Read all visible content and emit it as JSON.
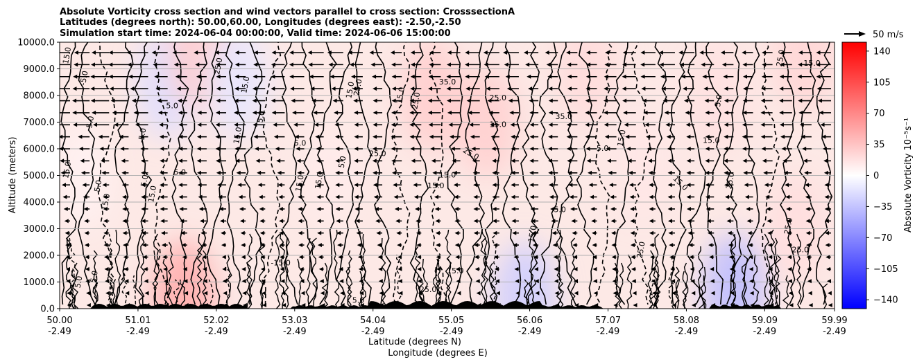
{
  "chart_data": {
    "type": "heatmap",
    "title_lines": [
      "Absolute Vorticity cross section and wind vectors parallel to cross section: CrosssectionA",
      "Latitudes (degrees north): 50.00,60.00, Longitudes (degrees east): -2.50,-2.50",
      "Simulation start time: 2024-06-04 00:00:00, Valid time: 2024-06-06 15:00:00"
    ],
    "xlabel_lines": [
      "Latitude (degrees N)",
      "Longitude (degrees E)"
    ],
    "ylabel": "Altitude (meters)",
    "x_ticks": [
      {
        "lat": 50.0,
        "label": "50.00",
        "lon_label": "-2.49"
      },
      {
        "lat": 51.01,
        "label": "51.01",
        "lon_label": "-2.49"
      },
      {
        "lat": 52.02,
        "label": "52.02",
        "lon_label": "-2.49"
      },
      {
        "lat": 53.03,
        "label": "53.03",
        "lon_label": "-2.49"
      },
      {
        "lat": 54.04,
        "label": "54.04",
        "lon_label": "-2.49"
      },
      {
        "lat": 55.05,
        "label": "55.05",
        "lon_label": "-2.49"
      },
      {
        "lat": 56.06,
        "label": "56.06",
        "lon_label": "-2.49"
      },
      {
        "lat": 57.07,
        "label": "57.07",
        "lon_label": "-2.49"
      },
      {
        "lat": 58.08,
        "label": "58.08",
        "lon_label": "-2.49"
      },
      {
        "lat": 59.09,
        "label": "59.09",
        "lon_label": "-2.49"
      },
      {
        "lat": 59.99,
        "label": "59.99",
        "lon_label": "-2.49"
      }
    ],
    "y_ticks": [
      {
        "value": 0,
        "label": "0.0"
      },
      {
        "value": 1000,
        "label": "1000.0"
      },
      {
        "value": 2000,
        "label": "2000.0"
      },
      {
        "value": 3000,
        "label": "3000.0"
      },
      {
        "value": 4000,
        "label": "4000.0"
      },
      {
        "value": 5000,
        "label": "5000.0"
      },
      {
        "value": 6000,
        "label": "6000.0"
      },
      {
        "value": 7000,
        "label": "7000.0"
      },
      {
        "value": 8000,
        "label": "8000.0"
      },
      {
        "value": 9000,
        "label": "9000.0"
      },
      {
        "value": 10000,
        "label": "10000.0"
      }
    ],
    "xlim": [
      50.0,
      59.99
    ],
    "ylim": [
      0,
      10000
    ],
    "grid": "horizontal",
    "colorbar": {
      "label": "Absolute Vorticity 10⁻⁵s⁻¹",
      "vmin": -150,
      "vmax": 150,
      "ticks": [
        {
          "value": 140,
          "label": "140"
        },
        {
          "value": 105,
          "label": "105"
        },
        {
          "value": 70,
          "label": "70"
        },
        {
          "value": 35,
          "label": "35"
        },
        {
          "value": 0,
          "label": "0"
        },
        {
          "value": -35,
          "label": "−35"
        },
        {
          "value": -70,
          "label": "−70"
        },
        {
          "value": -105,
          "label": "−105"
        },
        {
          "value": -140,
          "label": "−140"
        }
      ],
      "colors": [
        "#0000ff",
        "#ffffff",
        "#ff0000"
      ]
    },
    "quiver_key": {
      "label": "50 m/s",
      "speed": 50
    },
    "field_samples": [
      {
        "lat": 50.3,
        "alt": 5000,
        "value": 8
      },
      {
        "lat": 51.4,
        "alt": 8500,
        "value": -20
      },
      {
        "lat": 51.8,
        "alt": 9500,
        "value": 30
      },
      {
        "lat": 52.3,
        "alt": 8500,
        "value": -15
      },
      {
        "lat": 53.5,
        "alt": 5000,
        "value": 12
      },
      {
        "lat": 54.8,
        "alt": 8000,
        "value": 30
      },
      {
        "lat": 55.5,
        "alt": 7000,
        "value": 28
      },
      {
        "lat": 56.8,
        "alt": 9000,
        "value": 22
      },
      {
        "lat": 57.5,
        "alt": 5500,
        "value": 15
      },
      {
        "lat": 58.5,
        "alt": 8000,
        "value": 18
      },
      {
        "lat": 59.6,
        "alt": 9500,
        "value": 25
      },
      {
        "lat": 59.5,
        "alt": 3000,
        "value": 20
      },
      {
        "lat": 51.6,
        "alt": 500,
        "value": 50
      },
      {
        "lat": 58.7,
        "alt": 700,
        "value": -40
      },
      {
        "lat": 56.0,
        "alt": 400,
        "value": -30
      }
    ],
    "contour_labels": [
      {
        "lat": 50.1,
        "alt": 9500,
        "text": "15.0",
        "angle": -80
      },
      {
        "lat": 50.32,
        "alt": 8650,
        "text": "-5.0",
        "angle": -80
      },
      {
        "lat": 50.4,
        "alt": 7000,
        "text": "5.0",
        "angle": -80
      },
      {
        "lat": 50.1,
        "alt": 5200,
        "text": "15.0",
        "angle": -80
      },
      {
        "lat": 50.5,
        "alt": 4600,
        "text": "5.0",
        "angle": -80
      },
      {
        "lat": 50.6,
        "alt": 4000,
        "text": "15.0",
        "angle": -80
      },
      {
        "lat": 50.45,
        "alt": 1200,
        "text": "5.0",
        "angle": -80
      },
      {
        "lat": 51.07,
        "alt": 6500,
        "text": "-5.0",
        "angle": -80
      },
      {
        "lat": 51.1,
        "alt": 4800,
        "text": "5.0",
        "angle": -80
      },
      {
        "lat": 51.2,
        "alt": 4300,
        "text": "15.0",
        "angle": -80
      },
      {
        "lat": 51.45,
        "alt": 7600,
        "text": "5.0",
        "angle": 0
      },
      {
        "lat": 51.55,
        "alt": 5100,
        "text": "5.0",
        "angle": 0
      },
      {
        "lat": 52.05,
        "alt": 9100,
        "text": "25.0",
        "angle": -80
      },
      {
        "lat": 52.4,
        "alt": 8400,
        "text": "15.0",
        "angle": -80
      },
      {
        "lat": 52.3,
        "alt": 6500,
        "text": "15.0",
        "angle": -80
      },
      {
        "lat": 52.6,
        "alt": 7200,
        "text": "5.0",
        "angle": -80
      },
      {
        "lat": 53.1,
        "alt": 6200,
        "text": "5.0",
        "angle": 0
      },
      {
        "lat": 53.1,
        "alt": 4700,
        "text": "15.0",
        "angle": -80
      },
      {
        "lat": 53.35,
        "alt": 4800,
        "text": "15.0",
        "angle": -80
      },
      {
        "lat": 53.75,
        "alt": 8200,
        "text": "15.0",
        "angle": -80
      },
      {
        "lat": 53.65,
        "alt": 5500,
        "text": "5.0",
        "angle": -80
      },
      {
        "lat": 53.85,
        "alt": 8300,
        "text": "25.0",
        "angle": -80
      },
      {
        "lat": 54.4,
        "alt": 8000,
        "text": "15.0",
        "angle": -80
      },
      {
        "lat": 54.6,
        "alt": 7800,
        "text": "25.0",
        "angle": -80
      },
      {
        "lat": 54.1,
        "alt": 5800,
        "text": "25.0",
        "angle": 0
      },
      {
        "lat": 55.0,
        "alt": 8500,
        "text": "35.0",
        "angle": 0
      },
      {
        "lat": 55.65,
        "alt": 7900,
        "text": "25.0",
        "angle": 0
      },
      {
        "lat": 55.0,
        "alt": 5000,
        "text": "15.0",
        "angle": 0
      },
      {
        "lat": 54.85,
        "alt": 4600,
        "text": "15.0",
        "angle": 0
      },
      {
        "lat": 55.3,
        "alt": 5800,
        "text": "25.0",
        "angle": 30
      },
      {
        "lat": 55.65,
        "alt": 6900,
        "text": "15.0",
        "angle": 0
      },
      {
        "lat": 56.5,
        "alt": 7200,
        "text": "35.0",
        "angle": 0
      },
      {
        "lat": 57.0,
        "alt": 6000,
        "text": "5.0",
        "angle": 0
      },
      {
        "lat": 56.45,
        "alt": 3700,
        "text": "5.0",
        "angle": 0
      },
      {
        "lat": 56.1,
        "alt": 2800,
        "text": "15.0",
        "angle": -80
      },
      {
        "lat": 57.25,
        "alt": 6400,
        "text": "15.0",
        "angle": -80
      },
      {
        "lat": 58.4,
        "alt": 6300,
        "text": "15.0",
        "angle": 0
      },
      {
        "lat": 58.0,
        "alt": 4700,
        "text": "15.0",
        "angle": 45
      },
      {
        "lat": 58.65,
        "alt": 4800,
        "text": "25.0",
        "angle": -80
      },
      {
        "lat": 59.3,
        "alt": 9400,
        "text": "25.0",
        "angle": -80
      },
      {
        "lat": 59.7,
        "alt": 9200,
        "text": "15.0",
        "angle": 0
      },
      {
        "lat": 59.4,
        "alt": 3100,
        "text": "25.0",
        "angle": -80
      },
      {
        "lat": 59.55,
        "alt": 2200,
        "text": "25.0",
        "angle": 0
      },
      {
        "lat": 58.5,
        "alt": 7800,
        "text": "5.0",
        "angle": -80
      },
      {
        "lat": 57.5,
        "alt": 2200,
        "text": "25.0",
        "angle": -80
      },
      {
        "lat": 55.1,
        "alt": 1400,
        "text": "15.0",
        "angle": 0
      },
      {
        "lat": 53.85,
        "alt": 300,
        "text": "5.0",
        "angle": 0
      },
      {
        "lat": 54.75,
        "alt": 700,
        "text": "25.0",
        "angle": 0
      },
      {
        "lat": 52.85,
        "alt": 1700,
        "text": "-15.0",
        "angle": 0
      },
      {
        "lat": 50.25,
        "alt": 1000,
        "text": "5.0",
        "angle": -80
      }
    ]
  }
}
